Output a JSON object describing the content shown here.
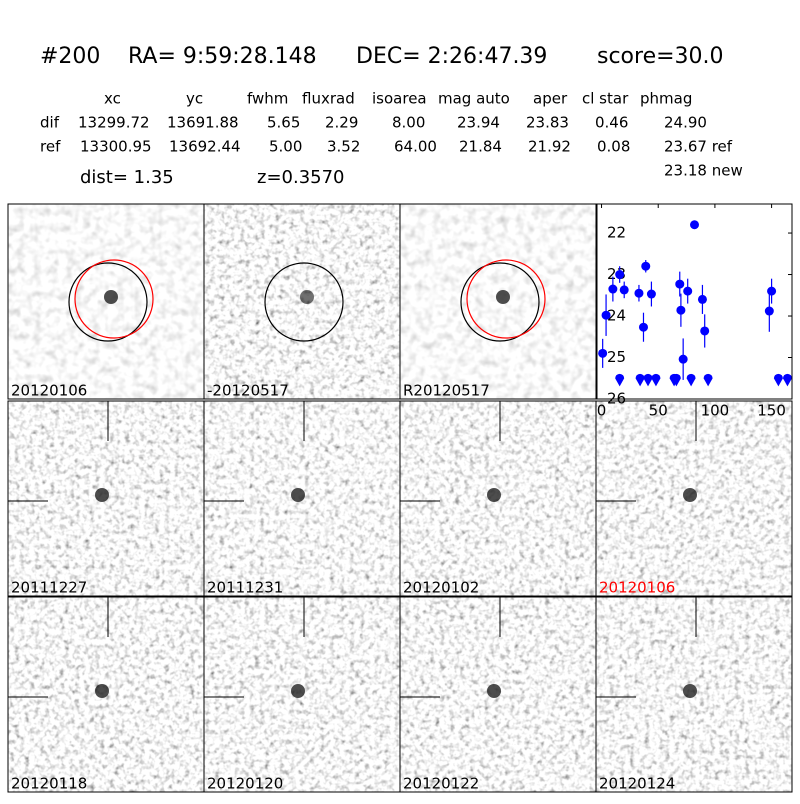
{
  "header": {
    "id": "#200",
    "ra": "RA= 9:59:28.148",
    "dec": "DEC= 2:26:47.39",
    "score": "score=30.0"
  },
  "table": {
    "columns": [
      "xc",
      "yc",
      "fwhm",
      "fluxrad",
      "isoarea",
      "mag auto",
      "aper",
      "cl star",
      "phmag"
    ],
    "rows": [
      [
        "dif",
        "13299.72",
        "13691.88",
        "5.65",
        "2.29",
        "8.00",
        "23.94",
        "23.83",
        "0.46",
        "24.90"
      ],
      [
        "ref",
        "13300.95",
        "13692.44",
        "5.00",
        "3.52",
        "64.00",
        "21.84",
        "21.92",
        "0.08",
        "23.67 ref"
      ]
    ],
    "extra": "23.18 new"
  },
  "dist": "dist=  1.35",
  "z": "z=0.3570",
  "stamps": [
    {
      "label": "20120106",
      "color": "#000000"
    },
    {
      "label": "-20120517",
      "color": "#000000"
    },
    {
      "label": "R20120517",
      "color": "#000000"
    },
    {
      "label": "20111227",
      "color": "#000000"
    },
    {
      "label": "20111231",
      "color": "#000000"
    },
    {
      "label": "20120102",
      "color": "#000000"
    },
    {
      "label": "20120106",
      "color": "#ff0000"
    },
    {
      "label": "20120118",
      "color": "#000000"
    },
    {
      "label": "20120120",
      "color": "#000000"
    },
    {
      "label": "20120122",
      "color": "#000000"
    },
    {
      "label": "20120124",
      "color": "#000000"
    }
  ],
  "chart_data": {
    "type": "scatter",
    "color": "#0000ff",
    "xlim": [
      -4,
      168
    ],
    "ylim": [
      26,
      21.3
    ],
    "xticks": [
      0,
      50,
      100,
      150
    ],
    "yticks": [
      22,
      23,
      24,
      25,
      26
    ],
    "points": {
      "x": [
        1,
        4,
        10,
        16,
        20,
        33,
        37,
        39,
        44,
        69,
        70,
        72,
        76,
        82,
        89,
        91,
        148,
        150
      ],
      "values": [
        24.9,
        23.98,
        23.35,
        23.0,
        23.37,
        23.45,
        24.27,
        22.8,
        23.47,
        23.23,
        23.86,
        25.04,
        23.4,
        21.8,
        23.6,
        24.36,
        23.88,
        23.4
      ],
      "errors": [
        0.35,
        0.5,
        0.3,
        0.2,
        0.2,
        0.2,
        0.35,
        0.15,
        0.3,
        0.3,
        0.4,
        0.5,
        0.3,
        0.1,
        0.35,
        0.4,
        0.5,
        0.3
      ]
    },
    "limits": {
      "x": [
        16,
        34,
        41,
        48,
        64,
        66,
        79,
        94,
        156,
        164
      ],
      "values": [
        25.55,
        25.55,
        25.55,
        25.55,
        25.55,
        25.55,
        25.55,
        25.55,
        25.55,
        25.55
      ]
    }
  }
}
